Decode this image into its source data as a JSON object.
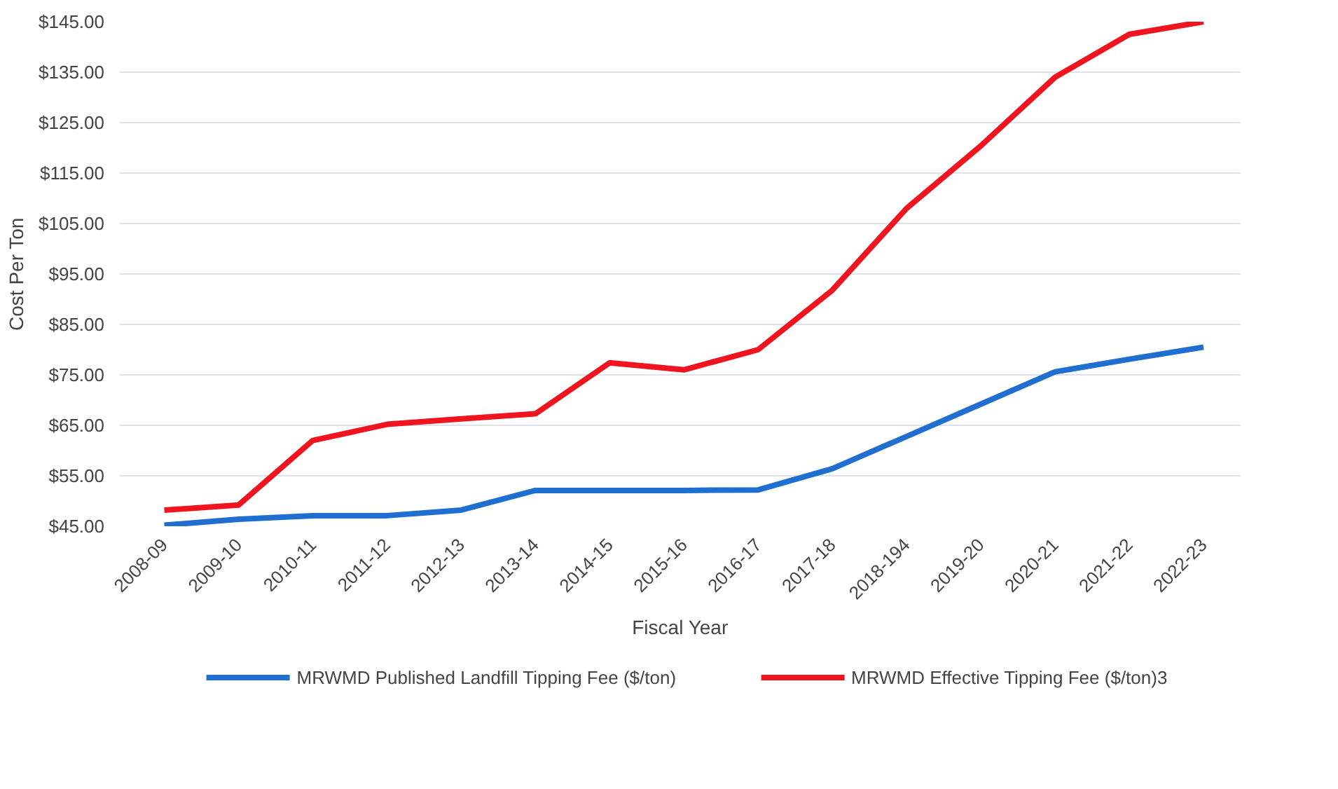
{
  "chart_data": {
    "type": "line",
    "xlabel": "Fiscal Year",
    "ylabel": "Cost Per Ton",
    "categories": [
      "2008-09",
      "2009-10",
      "2010-11",
      "2011-12",
      "2012-13",
      "2013-14",
      "2014-15",
      "2015-16",
      "2016-17",
      "2017-18",
      "2018-194",
      "2019-20",
      "2020-21",
      "2021-22",
      "2022-23"
    ],
    "series": [
      {
        "name": "MRWMD Published Landfill Tipping Fee ($/ton)",
        "color": "#1f6fd0",
        "values": [
          45.2,
          46.4,
          47.1,
          47.1,
          48.2,
          52.1,
          52.1,
          52.1,
          52.2,
          56.4,
          62.8,
          69.2,
          75.6,
          78.1,
          80.5
        ]
      },
      {
        "name": "MRWMD Effective Tipping Fee ($/ton)3",
        "color": "#f0141e",
        "values": [
          48.2,
          49.2,
          62.0,
          65.2,
          66.3,
          67.3,
          77.4,
          76.0,
          80.0,
          91.8,
          108.0,
          120.4,
          134.0,
          142.5,
          145.0
        ]
      }
    ],
    "ylim": [
      45,
      145
    ],
    "yticks": [
      {
        "value": 45,
        "label": "$45.00"
      },
      {
        "value": 55,
        "label": "$55.00"
      },
      {
        "value": 65,
        "label": "$65.00"
      },
      {
        "value": 75,
        "label": "$75.00"
      },
      {
        "value": 85,
        "label": "$85.00"
      },
      {
        "value": 95,
        "label": "$95.00"
      },
      {
        "value": 105,
        "label": "$105.00"
      },
      {
        "value": 115,
        "label": "$115.00"
      },
      {
        "value": 125,
        "label": "$125.00"
      },
      {
        "value": 135,
        "label": "$135.00"
      },
      {
        "value": 145,
        "label": "$145.00"
      }
    ],
    "grid": "y",
    "legend": "bottom",
    "marker": "none",
    "line_style": "solid"
  }
}
